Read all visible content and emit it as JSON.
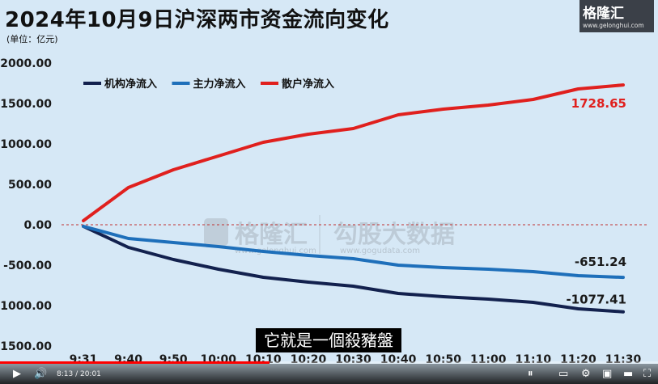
{
  "title": "2024年10月9日沪深两市资金流向变化",
  "unit_label": "(单位：亿元)",
  "logo": {
    "name": "格隆汇",
    "url": "www.gelonghui.com"
  },
  "watermark": {
    "brand": "格隆汇",
    "brand_url": "www.gelonghui.com",
    "partner": "勾股大数据",
    "partner_url": "www.gogudata.com"
  },
  "subtitle": "它就是一個殺豬盤",
  "player": {
    "time": "8:13 / 20:01",
    "progress": 0.41
  },
  "colors": {
    "institution": "#13214e",
    "main_force": "#1e6fba",
    "retail": "#e0201e",
    "zero_line": "#c03030"
  },
  "chart_data": {
    "type": "line",
    "title": "2024年10月9日沪深两市资金流向变化",
    "ylabel": "(单位：亿元)",
    "categories": [
      "9:31",
      "9:40",
      "9:50",
      "10:00",
      "10:10",
      "10:20",
      "10:30",
      "10:40",
      "10:50",
      "11:00",
      "11:10",
      "11:20",
      "11:30"
    ],
    "ylim": [
      -1500,
      2000
    ],
    "yticks": [
      "2000.00",
      "1500.00",
      "1000.00",
      "500.00",
      "0.00",
      "-500.00",
      "-1000.00",
      "-1500.00"
    ],
    "ytick_values": [
      2000,
      1500,
      1000,
      500,
      0,
      -500,
      -1000,
      -1500
    ],
    "legend_position": "top-left",
    "series": [
      {
        "name": "机构净流入",
        "color_key": "institution",
        "values": [
          -20,
          -280,
          -430,
          -550,
          -650,
          -710,
          -760,
          -850,
          -890,
          -920,
          -960,
          -1040,
          -1077.41
        ],
        "end_label": "-1077.41"
      },
      {
        "name": "主力净流入",
        "color_key": "main_force",
        "values": [
          -20,
          -170,
          -220,
          -270,
          -330,
          -380,
          -420,
          -500,
          -530,
          -550,
          -580,
          -630,
          -651.24
        ],
        "end_label": "-651.24"
      },
      {
        "name": "散户净流入",
        "color_key": "retail",
        "values": [
          50,
          460,
          680,
          850,
          1020,
          1120,
          1190,
          1360,
          1430,
          1480,
          1550,
          1680,
          1728.65
        ],
        "end_label": "1728.65"
      }
    ]
  }
}
